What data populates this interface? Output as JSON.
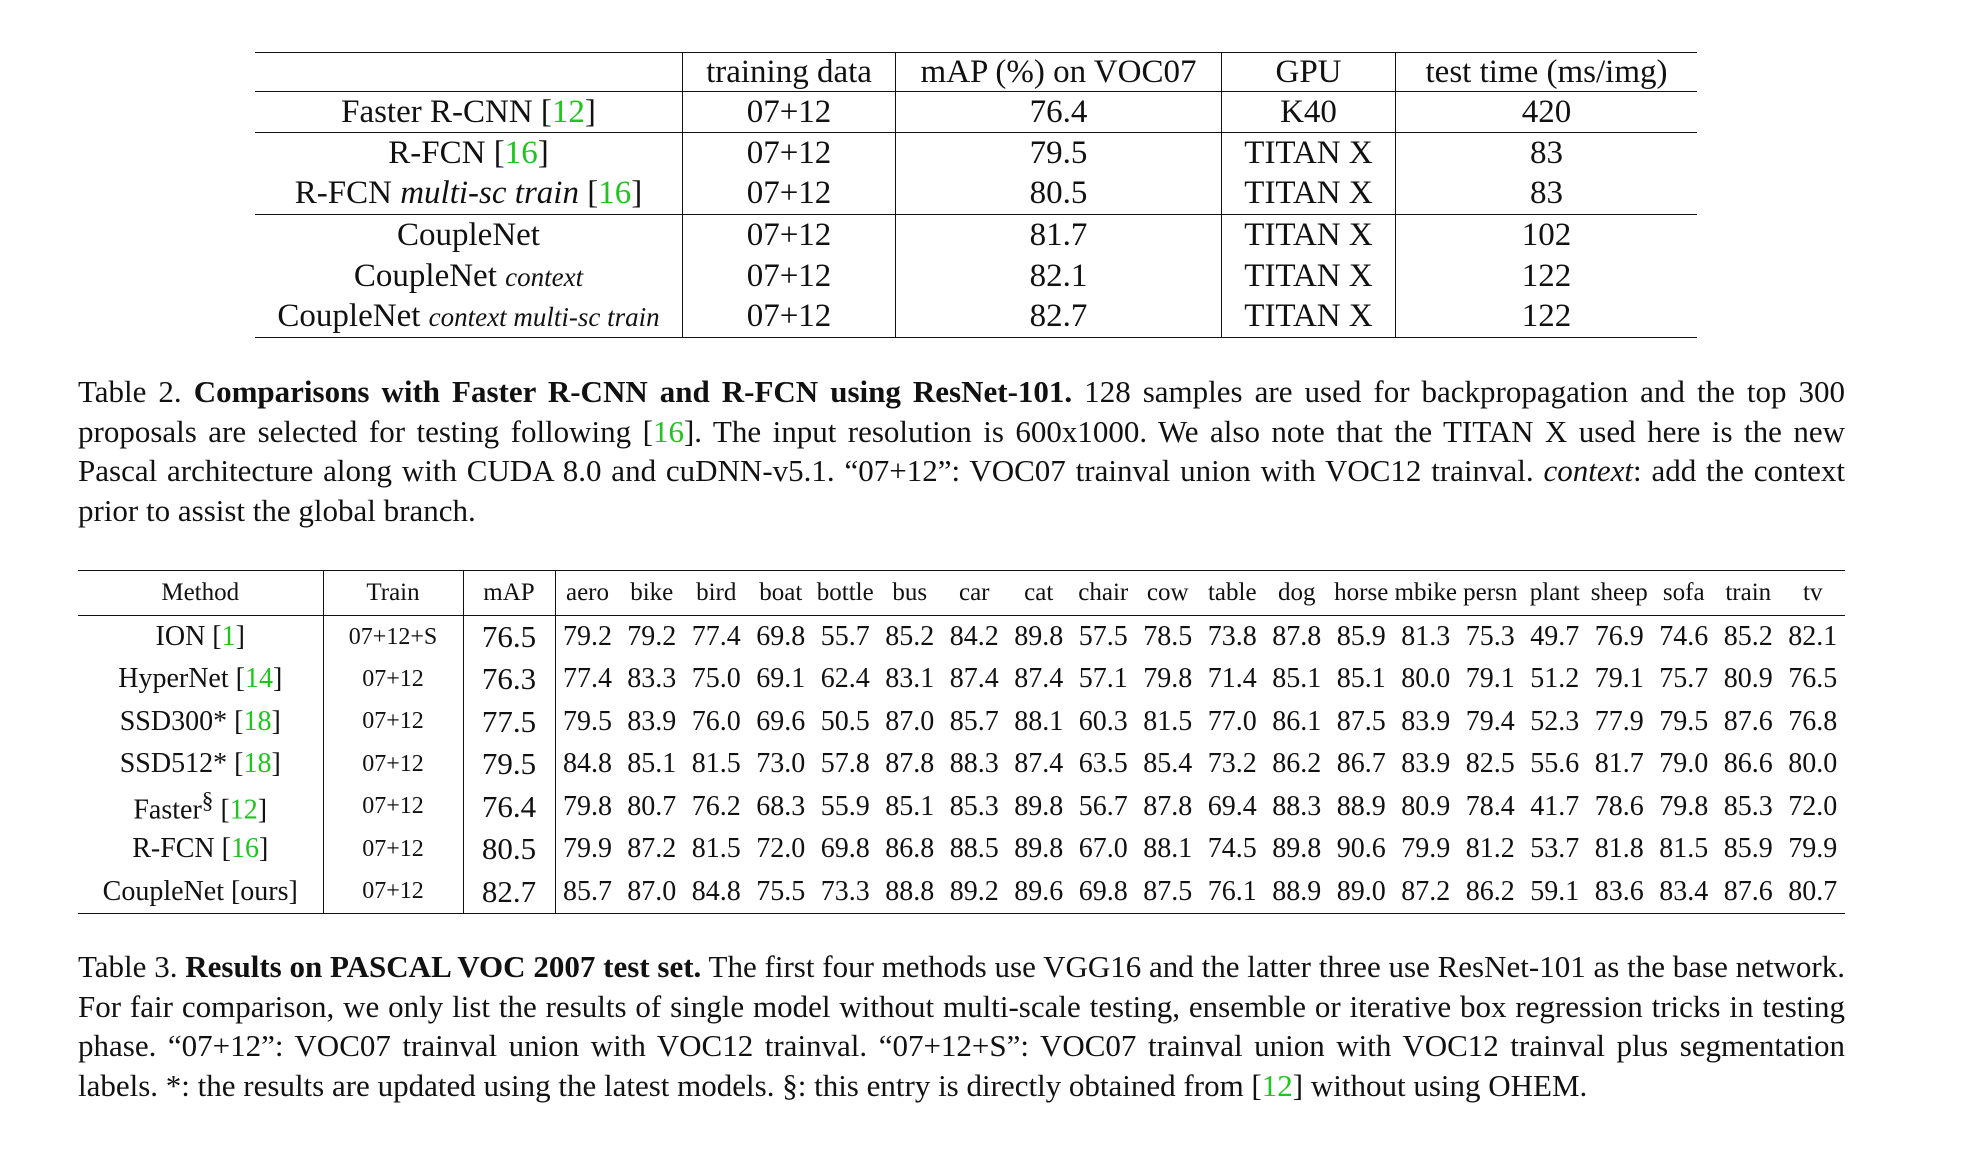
{
  "table2": {
    "headers": [
      "",
      "training data",
      "mAP (%) on VOC07",
      "GPU",
      "test time (ms/img)"
    ],
    "rows": [
      {
        "method": "Faster R-CNN [",
        "cite": "12",
        "close": "]",
        "style": "",
        "data": "07+12",
        "map": "76.4",
        "map_bold": false,
        "gpu": "K40",
        "time": "420"
      },
      {
        "method": "R-FCN [",
        "cite": "16",
        "close": "]",
        "style": "",
        "data": "07+12",
        "map": "79.5",
        "map_bold": false,
        "gpu": "TITAN X",
        "time": "83"
      },
      {
        "method": "R-FCN ",
        "italic": "multi-sc train",
        "after": " [",
        "cite": "16",
        "close": "]",
        "style": "",
        "data": "07+12",
        "map": "80.5",
        "map_bold": false,
        "gpu": "TITAN X",
        "time": "83"
      },
      {
        "method": "CoupleNet",
        "data": "07+12",
        "map": "81.7",
        "map_bold": true,
        "gpu": "TITAN X",
        "time": "102"
      },
      {
        "method": "CoupleNet ",
        "italic_small": "context",
        "data": "07+12",
        "map": "82.1",
        "map_bold": true,
        "gpu": "TITAN X",
        "time": "122"
      },
      {
        "method": "CoupleNet ",
        "italic_small": "context multi-sc train",
        "data": "07+12",
        "map": "82.7",
        "map_bold": true,
        "gpu": "TITAN X",
        "time": "122"
      }
    ]
  },
  "caption2": {
    "label": "Table 2.",
    "title": "Comparisons with Faster R-CNN and R-FCN using ResNet-101.",
    "text1": " 128 samples are used for backpropagation and the top 300 proposals are selected for testing following [",
    "cite": "16",
    "text2": "]. The input resolution is 600x1000. We also note that the TITAN X used here is the new Pascal architecture along with CUDA 8.0 and cuDNN-v5.1. “07+12”: VOC07 trainval union with VOC12 trainval. ",
    "italic": "context",
    "text3": ": add the context prior to assist the global branch."
  },
  "table3": {
    "headers": [
      "Method",
      "Train",
      "mAP",
      "aero",
      "bike",
      "bird",
      "boat",
      "bottle",
      "bus",
      "car",
      "cat",
      "chair",
      "cow",
      "table",
      "dog",
      "horse",
      "mbike",
      "persn",
      "plant",
      "sheep",
      "sofa",
      "train",
      "tv"
    ],
    "rows": [
      {
        "method": "ION [",
        "sup": "",
        "cite": "1",
        "close": "]",
        "train": "07+12+S",
        "map": "76.5",
        "map_bold": false,
        "values": [
          "79.2",
          "79.2",
          "77.4",
          "69.8",
          "55.7",
          "85.2",
          "84.2",
          "89.8",
          "57.5",
          "78.5",
          "73.8",
          "87.8",
          "85.9",
          "81.3",
          "75.3",
          "49.7",
          "76.9",
          "74.6",
          "85.2",
          "82.1"
        ],
        "bold": [
          7,
          19
        ]
      },
      {
        "method": "HyperNet [",
        "sup": "",
        "cite": "14",
        "close": "]",
        "train": "07+12",
        "map": "76.3",
        "map_bold": false,
        "values": [
          "77.4",
          "83.3",
          "75.0",
          "69.1",
          "62.4",
          "83.1",
          "87.4",
          "87.4",
          "57.1",
          "79.8",
          "71.4",
          "85.1",
          "85.1",
          "80.0",
          "79.1",
          "51.2",
          "79.1",
          "75.7",
          "80.9",
          "76.5"
        ],
        "bold": []
      },
      {
        "method": "SSD300* [",
        "sup": "",
        "cite": "18",
        "close": "]",
        "train": "07+12",
        "map": "77.5",
        "map_bold": false,
        "values": [
          "79.5",
          "83.9",
          "76.0",
          "69.6",
          "50.5",
          "87.0",
          "85.7",
          "88.1",
          "60.3",
          "81.5",
          "77.0",
          "86.1",
          "87.5",
          "83.9",
          "79.4",
          "52.3",
          "77.9",
          "79.5",
          "87.6",
          "76.8"
        ],
        "bold": [
          10
        ]
      },
      {
        "method": "SSD512* [",
        "sup": "",
        "cite": "18",
        "close": "]",
        "train": "07+12",
        "map": "79.5",
        "map_bold": false,
        "values": [
          "84.8",
          "85.1",
          "81.5",
          "73.0",
          "57.8",
          "87.8",
          "88.3",
          "87.4",
          "63.5",
          "85.4",
          "73.2",
          "86.2",
          "86.7",
          "83.9",
          "82.5",
          "55.6",
          "81.7",
          "79.0",
          "86.6",
          "80.0"
        ],
        "bold": []
      },
      {
        "method": "Faster",
        "sup": "§",
        "cite_pre": " [",
        "cite": "12",
        "close": "]",
        "train": "07+12",
        "map": "76.4",
        "map_bold": false,
        "values": [
          "79.8",
          "80.7",
          "76.2",
          "68.3",
          "55.9",
          "85.1",
          "85.3",
          "89.8",
          "56.7",
          "87.8",
          "69.4",
          "88.3",
          "88.9",
          "80.9",
          "78.4",
          "41.7",
          "78.6",
          "79.8",
          "85.3",
          "72.0"
        ],
        "bold": [
          7
        ]
      },
      {
        "method": "R-FCN [",
        "sup": "",
        "cite": "16",
        "close": "]",
        "train": "07+12",
        "map": "80.5",
        "map_bold": false,
        "values": [
          "79.9",
          "87.2",
          "81.5",
          "72.0",
          "69.8",
          "86.8",
          "88.5",
          "89.8",
          "67.0",
          "88.1",
          "74.5",
          "89.8",
          "90.6",
          "79.9",
          "81.2",
          "53.7",
          "81.8",
          "81.5",
          "85.9",
          "79.9"
        ],
        "bold": [
          1,
          9,
          11,
          12
        ]
      },
      {
        "method": "CoupleNet [ours]",
        "sup": "",
        "cite": "",
        "close": "",
        "train": "07+12",
        "map": "82.7",
        "map_bold": true,
        "values": [
          "85.7",
          "87.0",
          "84.8",
          "75.5",
          "73.3",
          "88.8",
          "89.2",
          "89.6",
          "69.8",
          "87.5",
          "76.1",
          "88.9",
          "89.0",
          "87.2",
          "86.2",
          "59.1",
          "83.6",
          "83.4",
          "87.6",
          "80.7"
        ],
        "bold": [
          0,
          2,
          3,
          4,
          5,
          6,
          8,
          13,
          14,
          15,
          16,
          17,
          18
        ]
      }
    ]
  },
  "caption3": {
    "label": "Table 3.",
    "title": "Results on PASCAL VOC 2007 test set.",
    "text1": " The first four methods use VGG16 and the latter three use ResNet-101 as the base network. For fair comparison, we only list the results of single model without multi-scale testing, ensemble or iterative box regression tricks in testing phase. “07+12”: VOC07 trainval union with VOC12 trainval. “07+12+S”: VOC07 trainval union with VOC12 trainval plus segmentation labels. *: the results are updated using the latest models. §: this entry is directly obtained from [",
    "cite": "12",
    "text2": "] without using OHEM."
  },
  "colors": {
    "citation": "#1ec51e",
    "text": "#111111"
  }
}
